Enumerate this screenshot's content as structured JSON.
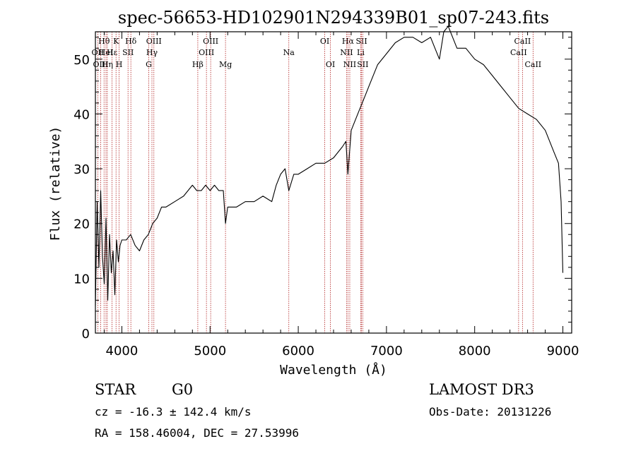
{
  "chart_data": {
    "type": "line",
    "title": "spec-56653-HD102901N294339B01_sp07-243.fits",
    "xlabel": "Wavelength (Å)",
    "ylabel": "Flux (relative)",
    "xlim": [
      3700,
      9100
    ],
    "ylim": [
      0,
      55
    ],
    "grid": false,
    "x_ticks": [
      4000,
      5000,
      6000,
      7000,
      8000,
      9000
    ],
    "y_ticks": [
      0,
      10,
      20,
      30,
      40,
      50
    ],
    "series": [
      {
        "name": "flux",
        "x": [
          3700,
          3720,
          3740,
          3760,
          3780,
          3800,
          3820,
          3840,
          3860,
          3880,
          3900,
          3920,
          3940,
          3960,
          3980,
          4000,
          4050,
          4100,
          4150,
          4200,
          4250,
          4300,
          4350,
          4400,
          4450,
          4500,
          4600,
          4700,
          4800,
          4850,
          4900,
          4950,
          5000,
          5050,
          5100,
          5150,
          5175,
          5200,
          5300,
          5400,
          5500,
          5600,
          5700,
          5750,
          5800,
          5850,
          5893,
          5950,
          6000,
          6100,
          6200,
          6300,
          6400,
          6500,
          6540,
          6563,
          6600,
          6650,
          6700,
          6750,
          6800,
          6900,
          7000,
          7100,
          7200,
          7300,
          7400,
          7500,
          7550,
          7600,
          7650,
          7700,
          7750,
          7800,
          7900,
          8000,
          8100,
          8200,
          8300,
          8400,
          8500,
          8600,
          8700,
          8800,
          8900,
          8950,
          8980,
          9000
        ],
        "y": [
          5,
          24,
          12,
          26,
          14,
          9,
          21,
          6,
          18,
          11,
          15,
          7,
          17,
          13,
          16,
          17,
          17,
          18,
          16,
          15,
          17,
          18,
          20,
          21,
          23,
          23,
          24,
          25,
          27,
          26,
          26,
          27,
          26,
          27,
          26,
          26,
          20,
          23,
          23,
          24,
          24,
          25,
          24,
          27,
          29,
          30,
          26,
          29,
          29,
          30,
          31,
          31,
          32,
          34,
          35,
          29,
          37,
          39,
          41,
          43,
          45,
          49,
          51,
          53,
          54,
          54,
          53,
          54,
          52,
          50,
          55,
          56,
          54,
          52,
          52,
          50,
          49,
          47,
          45,
          43,
          41,
          40,
          39,
          37,
          33,
          31,
          24,
          11
        ]
      }
    ],
    "line_markers": [
      {
        "label": "Hθ",
        "x": 3798,
        "row": 1
      },
      {
        "label": "OII",
        "x": 3727,
        "row": 2
      },
      {
        "label": "OIII",
        "x": 3760,
        "row": 3
      },
      {
        "label": "Hε",
        "x": 3889,
        "row": 2
      },
      {
        "label": "HeI",
        "x": 3820,
        "row": 2
      },
      {
        "label": "Hη",
        "x": 3835,
        "row": 3
      },
      {
        "label": "K",
        "x": 3934,
        "row": 1
      },
      {
        "label": "H",
        "x": 3969,
        "row": 3
      },
      {
        "label": "Hδ",
        "x": 4102,
        "row": 1
      },
      {
        "label": "SII",
        "x": 4070,
        "row": 2
      },
      {
        "label": "OIII",
        "x": 4363,
        "row": 1
      },
      {
        "label": "Hγ",
        "x": 4341,
        "row": 2
      },
      {
        "label": "G",
        "x": 4305,
        "row": 3
      },
      {
        "label": "Hβ",
        "x": 4861,
        "row": 3
      },
      {
        "label": "OIII",
        "x": 5007,
        "row": 1
      },
      {
        "label": "OIII",
        "x": 4959,
        "row": 2
      },
      {
        "label": "Mg",
        "x": 5175,
        "row": 3
      },
      {
        "label": "Na",
        "x": 5893,
        "row": 2
      },
      {
        "label": "OI",
        "x": 6300,
        "row": 1
      },
      {
        "label": "OI",
        "x": 6364,
        "row": 3
      },
      {
        "label": "Hα",
        "x": 6563,
        "row": 1
      },
      {
        "label": "SII",
        "x": 6717,
        "row": 1
      },
      {
        "label": "NII",
        "x": 6548,
        "row": 2
      },
      {
        "label": "Li",
        "x": 6708,
        "row": 2
      },
      {
        "label": "NII",
        "x": 6584,
        "row": 3
      },
      {
        "label": "SII",
        "x": 6731,
        "row": 3
      },
      {
        "label": "CaII",
        "x": 8542,
        "row": 1
      },
      {
        "label": "CaII",
        "x": 8498,
        "row": 2
      },
      {
        "label": "CaII",
        "x": 8662,
        "row": 3
      }
    ]
  },
  "info": {
    "object_class": "STAR",
    "subclass": "G0",
    "survey": "LAMOST DR3",
    "cz": "cz = -16.3 ± 142.4 km/s",
    "obs_date": "Obs-Date: 20131226",
    "coords": "RA = 158.46004, DEC =  27.53996"
  },
  "colors": {
    "axis": "#000000",
    "spectrum": "#000000",
    "marker_line": "#b22222"
  }
}
